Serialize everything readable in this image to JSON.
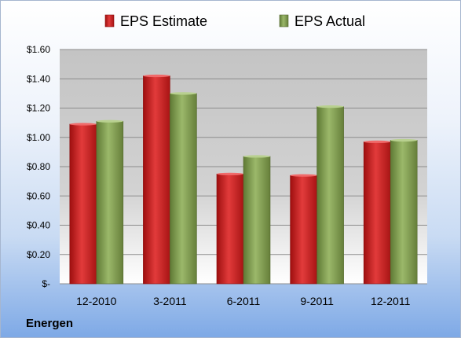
{
  "company": "Energen",
  "chart_data": {
    "type": "bar",
    "categories": [
      "12-2010",
      "3-2011",
      "6-2011",
      "9-2011",
      "12-2011"
    ],
    "series": [
      {
        "name": "EPS Estimate",
        "values": [
          1.09,
          1.42,
          0.75,
          0.74,
          0.97
        ],
        "color": "#d21f1f"
      },
      {
        "name": "EPS Actual",
        "values": [
          1.11,
          1.3,
          0.87,
          1.21,
          0.98
        ],
        "color": "#8aa95a"
      }
    ],
    "ylim": [
      0,
      1.6
    ],
    "yticks": [
      0,
      0.2,
      0.4,
      0.6,
      0.8,
      1.0,
      1.2,
      1.4,
      1.6
    ],
    "ytick_labels": [
      "$-",
      "$0.20",
      "$0.40",
      "$0.60",
      "$0.80",
      "$1.00",
      "$1.20",
      "$1.40",
      "$1.60"
    ],
    "grid": true,
    "legend": "top",
    "title": "",
    "xlabel": "",
    "ylabel": ""
  }
}
